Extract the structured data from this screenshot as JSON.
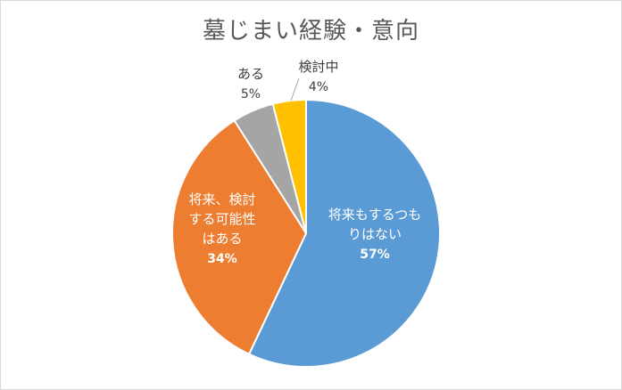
{
  "chart_data": {
    "type": "pie",
    "title": "墓じまい経験・意向",
    "slices": [
      {
        "label_lines": [
          "将来もするつも",
          "りはない"
        ],
        "value": 57,
        "value_label": "57%",
        "color": "#5b9bd5"
      },
      {
        "label_lines": [
          "将来、検討",
          "する可能性",
          "はある"
        ],
        "value": 34,
        "value_label": "34%",
        "color": "#ed7d31"
      },
      {
        "label_lines": [
          "ある"
        ],
        "value": 5,
        "value_label": "5%",
        "color": "#a5a5a5"
      },
      {
        "label_lines": [
          "検討中"
        ],
        "value": 4,
        "value_label": "4%",
        "color": "#ffc000"
      }
    ],
    "start_angle_deg": 0,
    "direction": "clockwise",
    "legend": "none"
  }
}
